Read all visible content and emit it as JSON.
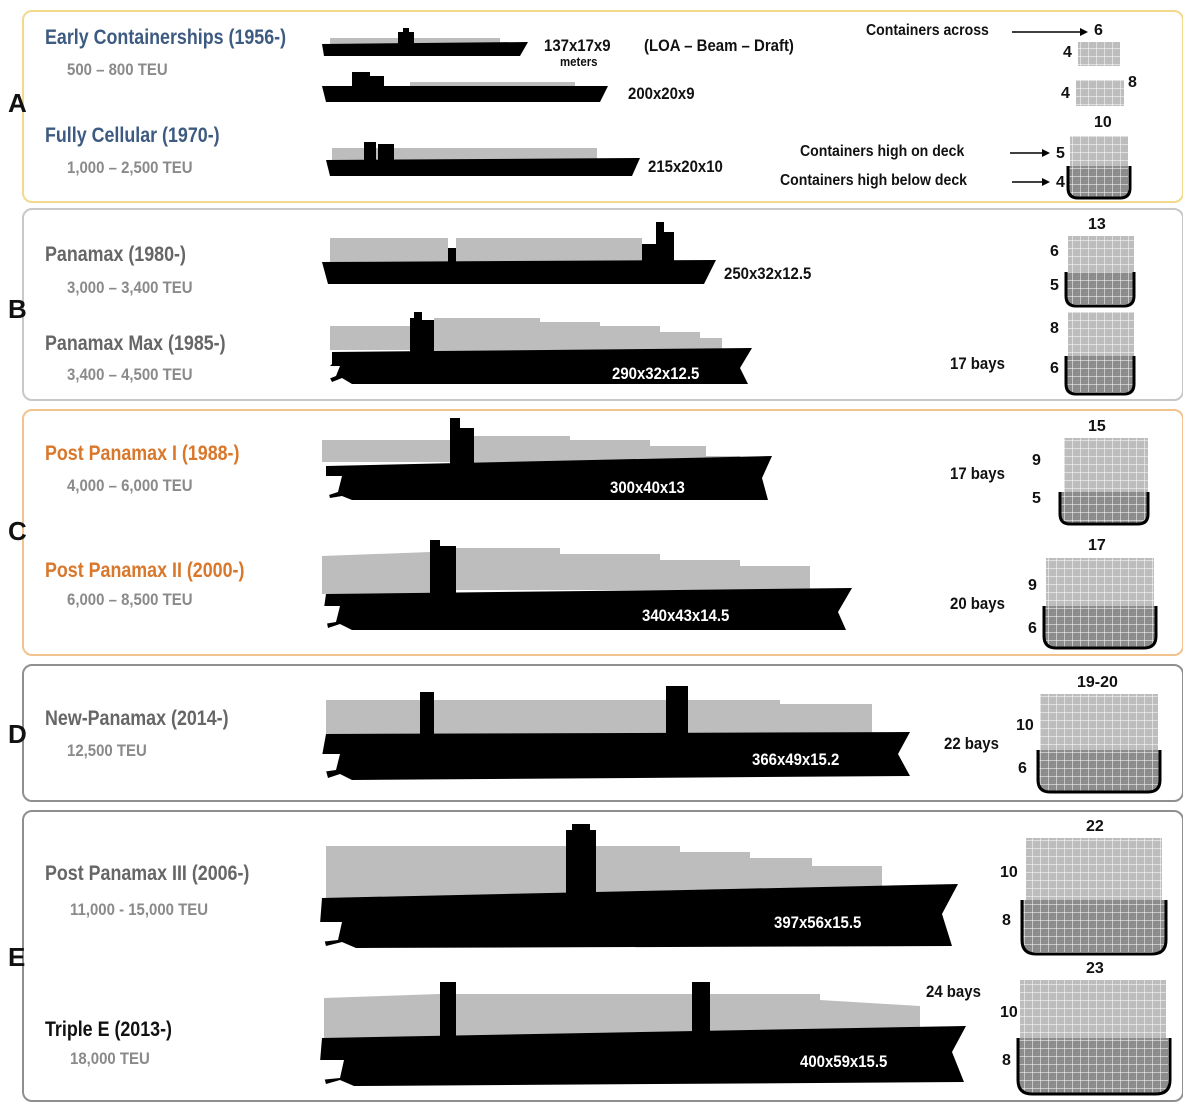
{
  "colors": {
    "blue": "#3d5a80",
    "orange": "#d9772b",
    "gray_text": "#555555",
    "light_gray_text": "#8a8a8a",
    "border_gold": "#f3d98b",
    "border_orange": "#f3c38f",
    "border_gray": "#9a9a9a",
    "cargo_gray": "#bdbdbd",
    "hull_black": "#000000"
  },
  "groups": [
    {
      "letter": "A"
    },
    {
      "letter": "B"
    },
    {
      "letter": "C"
    },
    {
      "letter": "D"
    },
    {
      "letter": "E"
    }
  ],
  "ships": [
    {
      "name": "Early Containerships (1956-)",
      "teu": "500 – 800 TEU",
      "dims": "137x17x9",
      "dims_unit": "meters"
    },
    {
      "name": "",
      "teu": "",
      "dims": "200x20x9"
    },
    {
      "name": "Fully Cellular (1970-)",
      "teu": "1,000 – 2,500 TEU",
      "dims": "215x20x10"
    },
    {
      "name": "Panamax (1980-)",
      "teu": "3,000 – 3,400 TEU",
      "dims": "250x32x12.5"
    },
    {
      "name": "Panamax Max (1985-)",
      "teu": "3,400 – 4,500 TEU",
      "dims": "290x32x12.5",
      "bays": "17 bays"
    },
    {
      "name": "Post Panamax I (1988-)",
      "teu": "4,000 – 6,000 TEU",
      "dims": "300x40x13",
      "bays": "17 bays"
    },
    {
      "name": "Post Panamax II (2000-)",
      "teu": "6,000 – 8,500 TEU",
      "dims": "340x43x14.5",
      "bays": "20 bays"
    },
    {
      "name": "New-Panamax (2014-)",
      "teu": "12,500 TEU",
      "dims": "366x49x15.2",
      "bays": "22 bays"
    },
    {
      "name": "Post Panamax III (2006-)",
      "teu": "11,000 - 15,000 TEU",
      "dims": "397x56x15.5"
    },
    {
      "name": "Triple E (2013-)",
      "teu": "18,000 TEU",
      "dims": "400x59x15.5",
      "bays": "24 bays"
    }
  ],
  "legend": {
    "dims_key": "(LOA – Beam – Draft)",
    "across": "Containers across",
    "on_deck": "Containers high on deck",
    "below_deck": "Containers high below deck"
  },
  "sections": [
    {
      "across": "6",
      "on_deck": "",
      "below_deck": "4"
    },
    {
      "across": "8",
      "on_deck": "",
      "below_deck": "4"
    },
    {
      "across": "10",
      "on_deck": "5",
      "below_deck": "4"
    },
    {
      "across": "13",
      "on_deck": "6",
      "below_deck": "5"
    },
    {
      "across": "",
      "on_deck": "8",
      "below_deck": "6"
    },
    {
      "across": "15",
      "on_deck": "9",
      "below_deck": "5"
    },
    {
      "across": "17",
      "on_deck": "9",
      "below_deck": "6"
    },
    {
      "across": "19-20",
      "on_deck": "10",
      "below_deck": "6"
    },
    {
      "across": "22",
      "on_deck": "10",
      "below_deck": "8"
    },
    {
      "across": "23",
      "on_deck": "10",
      "below_deck": "8"
    }
  ]
}
